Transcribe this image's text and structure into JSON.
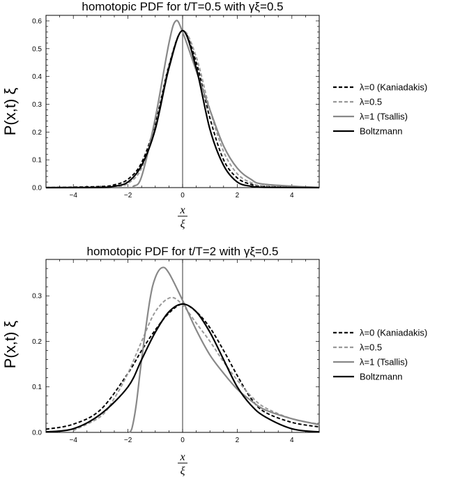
{
  "chart_data": [
    {
      "type": "line",
      "title": "homotopic PDF for t/T=0.5 with γξ=0.5",
      "ylabel": "P(x,t) ξ",
      "xlabel_num": "x",
      "xlabel_den": "ξ",
      "xlim": [
        -5,
        5
      ],
      "ylim": [
        0,
        0.62
      ],
      "xticks": [
        -4,
        -2,
        0,
        2,
        4
      ],
      "yticks": [
        0.0,
        0.1,
        0.2,
        0.3,
        0.4,
        0.5,
        0.6
      ],
      "ytick_labels": [
        "0.0",
        "0.1",
        "0.2",
        "0.3",
        "0.4",
        "0.5",
        "0.6"
      ],
      "legend_position": "right",
      "series": [
        {
          "name": "λ=0 (Kaniadakis)",
          "color": "#000000",
          "dash": "dashed",
          "peak_x": 0.0,
          "peak_y": 0.565,
          "x": [
            -5,
            -3,
            -2.5,
            -2,
            -1.5,
            -1,
            -0.5,
            0,
            0.5,
            1,
            1.5,
            2,
            2.5,
            3,
            5
          ],
          "y": [
            0,
            0.004,
            0.01,
            0.03,
            0.09,
            0.23,
            0.44,
            0.565,
            0.45,
            0.25,
            0.1,
            0.035,
            0.012,
            0.004,
            0
          ]
        },
        {
          "name": "λ=0.5",
          "color": "#999999",
          "dash": "dashed",
          "peak_x": 0.05,
          "peak_y": 0.57,
          "x": [
            -5,
            -3,
            -2.5,
            -2,
            -1.5,
            -1,
            -0.5,
            0,
            0.5,
            1,
            1.5,
            2,
            2.5,
            3,
            5
          ],
          "y": [
            0,
            0.001,
            0.003,
            0.015,
            0.07,
            0.22,
            0.44,
            0.565,
            0.47,
            0.28,
            0.13,
            0.05,
            0.018,
            0.006,
            0
          ]
        },
        {
          "name": "λ=1 (Tsallis)",
          "color": "#888888",
          "dash": "solid",
          "peak_x": -0.25,
          "peak_y": 0.6,
          "x": [
            -5,
            -2,
            -1.8,
            -1.5,
            -1,
            -0.5,
            -0.25,
            0,
            0.5,
            1,
            1.5,
            2,
            2.5,
            3,
            5
          ],
          "y": [
            0,
            0,
            0.005,
            0.04,
            0.25,
            0.52,
            0.6,
            0.56,
            0.42,
            0.28,
            0.15,
            0.07,
            0.03,
            0.012,
            0
          ]
        },
        {
          "name": "Boltzmann",
          "color": "#000000",
          "dash": "solid",
          "peak_x": 0.0,
          "peak_y": 0.565,
          "x": [
            -5,
            -3,
            -2.5,
            -2,
            -1.5,
            -1,
            -0.5,
            0,
            0.5,
            1,
            1.5,
            2,
            2.5,
            3,
            5
          ],
          "y": [
            0,
            0.001,
            0.005,
            0.02,
            0.08,
            0.21,
            0.43,
            0.565,
            0.43,
            0.21,
            0.08,
            0.02,
            0.005,
            0.001,
            0
          ]
        }
      ]
    },
    {
      "type": "line",
      "title": "homotopic PDF for t/T=2 with γξ=0.5",
      "ylabel": "P(x,t) ξ",
      "xlabel_num": "x",
      "xlabel_den": "ξ",
      "xlim": [
        -5,
        5
      ],
      "ylim": [
        0,
        0.38
      ],
      "xticks": [
        -4,
        -2,
        0,
        2,
        4
      ],
      "yticks": [
        0.0,
        0.1,
        0.2,
        0.3
      ],
      "ytick_labels": [
        "0.0",
        "0.1",
        "0.2",
        "0.3"
      ],
      "legend_position": "right",
      "series": [
        {
          "name": "λ=0 (Kaniadakis)",
          "color": "#000000",
          "dash": "dashed",
          "peak_x": 0.0,
          "peak_y": 0.282,
          "x": [
            -5,
            -4,
            -3,
            -2,
            -1.5,
            -1,
            -0.5,
            0,
            0.5,
            1,
            1.5,
            2,
            2.5,
            3,
            4,
            5
          ],
          "y": [
            0.007,
            0.018,
            0.05,
            0.13,
            0.18,
            0.225,
            0.262,
            0.282,
            0.265,
            0.23,
            0.18,
            0.125,
            0.075,
            0.045,
            0.022,
            0.012
          ]
        },
        {
          "name": "λ=0.5",
          "color": "#999999",
          "dash": "dashed",
          "peak_x": -0.45,
          "peak_y": 0.296,
          "x": [
            -4,
            -3,
            -2.5,
            -2,
            -1.5,
            -1,
            -0.45,
            0,
            0.5,
            1,
            1.5,
            2,
            2.5,
            3,
            4,
            5
          ],
          "y": [
            0.004,
            0.035,
            0.075,
            0.13,
            0.2,
            0.265,
            0.296,
            0.28,
            0.24,
            0.2,
            0.155,
            0.115,
            0.08,
            0.055,
            0.03,
            0.018
          ]
        },
        {
          "name": "λ=1 (Tsallis)",
          "color": "#888888",
          "dash": "solid",
          "peak_x": -0.75,
          "peak_y": 0.362,
          "x": [
            -1.95,
            -1.85,
            -1.7,
            -1.5,
            -1.2,
            -1,
            -0.75,
            -0.5,
            0,
            0.5,
            1,
            1.5,
            2,
            2.5,
            3,
            4,
            5
          ],
          "y": [
            0,
            0.01,
            0.06,
            0.16,
            0.29,
            0.34,
            0.362,
            0.35,
            0.29,
            0.225,
            0.17,
            0.13,
            0.095,
            0.07,
            0.05,
            0.03,
            0.017
          ]
        },
        {
          "name": "Boltzmann",
          "color": "#000000",
          "dash": "solid",
          "peak_x": 0.0,
          "peak_y": 0.282,
          "x": [
            -5,
            -4,
            -3,
            -2,
            -1.5,
            -1,
            -0.5,
            0,
            0.5,
            1,
            1.5,
            2,
            2.5,
            3,
            4,
            5
          ],
          "y": [
            0.001,
            0.008,
            0.04,
            0.1,
            0.16,
            0.22,
            0.265,
            0.282,
            0.265,
            0.22,
            0.16,
            0.1,
            0.06,
            0.035,
            0.008,
            0.001
          ]
        }
      ]
    }
  ]
}
